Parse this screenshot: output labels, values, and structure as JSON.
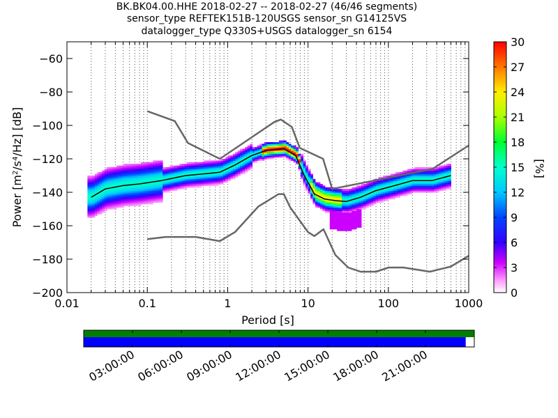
{
  "header": {
    "line1": "BK.BK04.00.HHE   2018-02-27 -- 2018-02-27  (46/46 segments)",
    "line2": "sensor_type REFTEK151B-120USGS sensor_sn G14125VS",
    "line3": "datalogger_type Q330S+USGS datalogger_sn 6154"
  },
  "chart_data": {
    "type": "heatmap",
    "title": "BK.BK04.00.HHE   2018-02-27 -- 2018-02-27  (46/46 segments)",
    "xlabel": "Period [s]",
    "ylabel": "Power [m²/s⁴/Hz] [dB]",
    "x_scale": "log",
    "xlim": [
      0.01,
      1000
    ],
    "ylim": [
      -200,
      -50
    ],
    "x_ticks": [
      0.01,
      0.1,
      1,
      10,
      100,
      1000
    ],
    "x_tick_labels": [
      "0.01",
      "0.1",
      "1",
      "10",
      "100",
      "1000"
    ],
    "y_ticks": [
      -200,
      -180,
      -160,
      -140,
      -120,
      -100,
      -80,
      -60
    ],
    "y_tick_labels": [
      "−200",
      "−180",
      "−160",
      "−140",
      "−120",
      "−100",
      "−80",
      "−60"
    ],
    "grid": "dotted vertical at log periods",
    "colorbar": {
      "label": "[%]",
      "range": [
        0,
        30
      ],
      "ticks": [
        0,
        3,
        6,
        9,
        12,
        15,
        18,
        21,
        24,
        27,
        30
      ],
      "colormap": "pqlx"
    },
    "series": [
      {
        "name": "NHNM",
        "color": "#666666",
        "x": [
          0.1,
          0.22,
          0.32,
          0.8,
          3.8,
          4.6,
          6.3,
          7.9,
          15.4,
          20,
          354.8,
          1000
        ],
        "y": [
          -91.5,
          -97.4,
          -110.5,
          -120,
          -98,
          -96.5,
          -101,
          -113.5,
          -120,
          -138,
          -126,
          -112
        ]
      },
      {
        "name": "NLNM",
        "color": "#666666",
        "x": [
          0.1,
          0.17,
          0.4,
          0.8,
          1.24,
          2.4,
          4.3,
          5,
          6,
          10,
          12,
          15.6,
          21.9,
          31.6,
          45,
          70,
          101,
          154,
          328,
          600,
          1000
        ],
        "y": [
          -168,
          -166.7,
          -166.7,
          -169.2,
          -163.7,
          -148.6,
          -141.1,
          -141.1,
          -149,
          -163.8,
          -166.2,
          -162.1,
          -177.5,
          -185,
          -187.5,
          -187.5,
          -185,
          -185,
          -187.5,
          -184.4,
          -178
        ]
      },
      {
        "name": "mode",
        "color": "#000000",
        "x": [
          0.02,
          0.03,
          0.05,
          0.08,
          0.15,
          0.3,
          0.5,
          0.8,
          1.2,
          2,
          3,
          5,
          7,
          9,
          12,
          16,
          22,
          30,
          45,
          70,
          120,
          200,
          350,
          600
        ],
        "y": [
          -143,
          -138,
          -136,
          -135,
          -133,
          -130,
          -129,
          -128,
          -124,
          -118,
          -115,
          -114,
          -118,
          -130,
          -141,
          -144,
          -145,
          -145.5,
          -143,
          -139,
          -136,
          -133,
          -133,
          -130
        ]
      }
    ],
    "time_bar": {
      "labels": [
        "03:00:00",
        "06:00:00",
        "09:00:00",
        "12:00:00",
        "15:00:00",
        "18:00:00",
        "21:00:00"
      ],
      "data_coverage_fraction": 0.978,
      "gap_coverage_fraction": 1.0,
      "colors": {
        "gaps_row": "#007f00",
        "data_row": "#0000ff"
      }
    }
  }
}
